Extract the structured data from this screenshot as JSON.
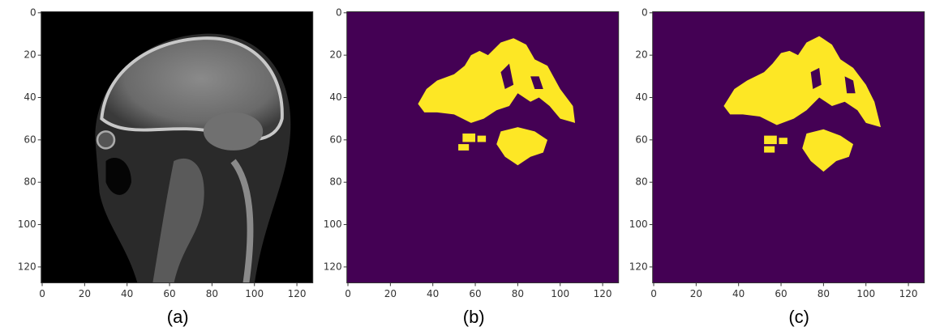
{
  "panels": [
    {
      "caption": "(a)",
      "xlim": [
        -0.5,
        127.5
      ],
      "ylim": [
        127.5,
        -0.5
      ],
      "xticks": [
        0,
        20,
        40,
        60,
        80,
        100,
        120
      ],
      "yticks": [
        0,
        20,
        40,
        60,
        80,
        100,
        120
      ]
    },
    {
      "caption": "(b)",
      "xlim": [
        -0.5,
        127.5
      ],
      "ylim": [
        127.5,
        -0.5
      ],
      "xticks": [
        0,
        20,
        40,
        60,
        80,
        100,
        120
      ],
      "yticks": [
        0,
        20,
        40,
        60,
        80,
        100,
        120
      ]
    },
    {
      "caption": "(c)",
      "xlim": [
        -0.5,
        127.5
      ],
      "ylim": [
        127.5,
        -0.5
      ],
      "xticks": [
        0,
        20,
        40,
        60,
        80,
        100,
        120
      ],
      "yticks": [
        0,
        20,
        40,
        60,
        80,
        100,
        120
      ]
    }
  ]
}
